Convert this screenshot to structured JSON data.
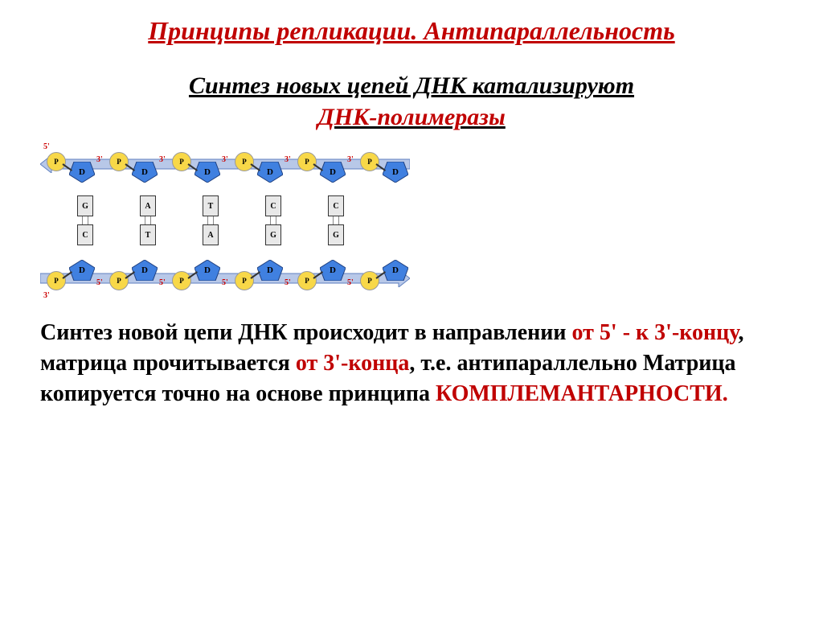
{
  "title": {
    "text": "Принципы репликации. Антипараллельность",
    "color": "#c00000"
  },
  "subtitle": {
    "line1": "Синтез новых цепей ДНК катализируют",
    "line1_color": "#000000",
    "line2": "ДНК-полимеразы",
    "line2_color": "#c00000"
  },
  "diagram": {
    "arrow_color": "#b8c8e8",
    "arrow_border": "#6080c0",
    "phosphate_color": "#f8d848",
    "sugar_color": "#4080e0",
    "base_color": "#e8e8e8",
    "end_label_color": "#cc0000",
    "sugar_label": "D",
    "phosphate_label": "P",
    "top_bases": [
      "G",
      "A",
      "T",
      "C",
      "C"
    ],
    "bottom_bases": [
      "C",
      "T",
      "A",
      "G",
      "G"
    ],
    "end_5": "5'",
    "end_3": "3'",
    "unit_width": 78,
    "units": 6
  },
  "body": {
    "parts": [
      {
        "text": "Синтез новой цепи ДНК происходит в направлении ",
        "color": "#000000"
      },
      {
        "text": "от 5' -  к 3'-концу",
        "color": "#c00000"
      },
      {
        "text": ", матрица прочитывается ",
        "color": "#000000"
      },
      {
        "text": "от 3'-конца",
        "color": "#c00000"
      },
      {
        "text": ", т.е. антипараллельно Матрица копируется точно на основе принципа ",
        "color": "#000000"
      },
      {
        "text": "КОМПЛЕМАНТАРНОСТИ.",
        "color": "#c00000"
      }
    ]
  }
}
